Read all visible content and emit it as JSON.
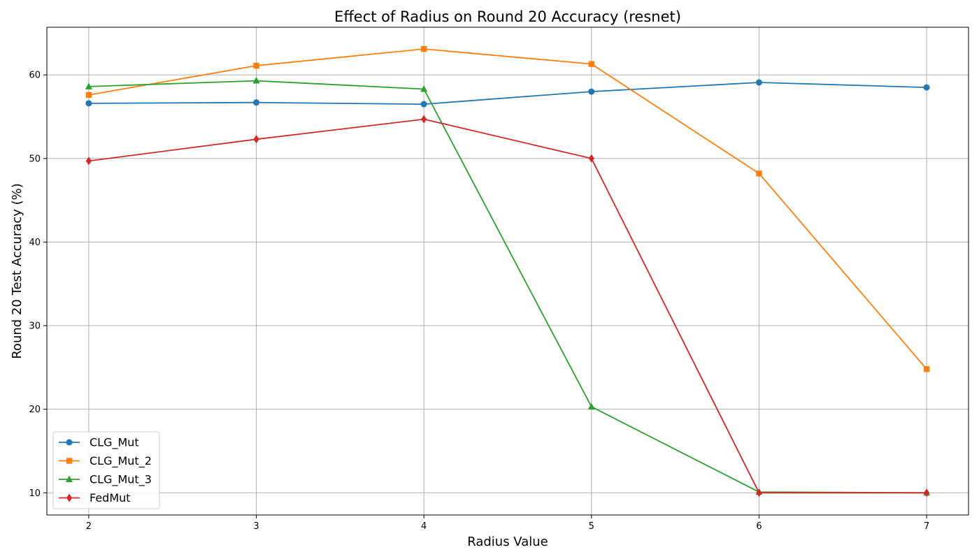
{
  "chart_data": {
    "type": "line",
    "title": "Effect of Radius on Round 20 Accuracy (resnet)",
    "xlabel": "Radius Value",
    "ylabel": "Round 20 Test Accuracy (%)",
    "x": [
      2,
      3,
      4,
      5,
      6,
      7
    ],
    "xlim": [
      1.75,
      7.25
    ],
    "ylim": [
      7.35,
      65.7
    ],
    "xticks": [
      2,
      3,
      4,
      5,
      6,
      7
    ],
    "yticks": [
      10,
      20,
      30,
      40,
      50,
      60
    ],
    "grid": true,
    "legend_position": "lower-left",
    "series": [
      {
        "name": "CLG_Mut",
        "color": "#1f77b4",
        "marker": "circle",
        "values": [
          56.6,
          56.7,
          56.5,
          58.0,
          59.1,
          58.5
        ]
      },
      {
        "name": "CLG_Mut_2",
        "color": "#ff7f0e",
        "marker": "square",
        "values": [
          57.6,
          61.1,
          63.1,
          61.3,
          48.2,
          24.8
        ]
      },
      {
        "name": "CLG_Mut_3",
        "color": "#2ca02c",
        "marker": "triangle",
        "values": [
          58.6,
          59.3,
          58.3,
          20.3,
          10.1,
          10.0
        ]
      },
      {
        "name": "FedMut",
        "color": "#d62728",
        "marker": "diamond",
        "values": [
          49.7,
          52.3,
          54.7,
          50.0,
          10.0,
          10.0
        ]
      }
    ]
  }
}
